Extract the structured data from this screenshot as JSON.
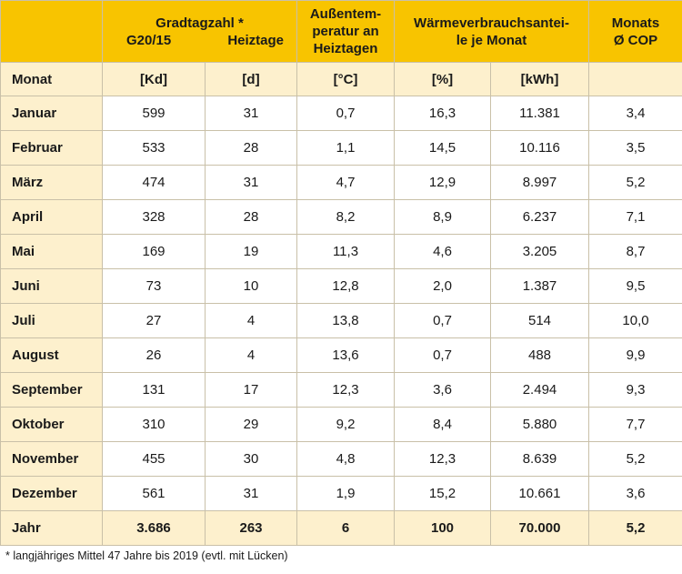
{
  "header": {
    "gradtagzahl_title": "Gradtagzahl *",
    "g20_15": "G20/15",
    "heiztage": "Heiztage",
    "aussentemp": "Außentem-\nperatur an\nHeiztagen",
    "waermeverbrauch": "Wärmeverbrauchsantei-\nle je Monat",
    "monats_cop": "Monats\nØ COP"
  },
  "units": {
    "monat": "Monat",
    "kd": "[Kd]",
    "d": "[d]",
    "celsius": "[°C]",
    "percent": "[%]",
    "kwh": "[kWh]",
    "cop": ""
  },
  "rows": [
    {
      "monat": "Januar",
      "kd": "599",
      "d": "31",
      "temp": "0,7",
      "pct": "16,3",
      "kwh": "11.381",
      "cop": "3,4"
    },
    {
      "monat": "Februar",
      "kd": "533",
      "d": "28",
      "temp": "1,1",
      "pct": "14,5",
      "kwh": "10.116",
      "cop": "3,5"
    },
    {
      "monat": "März",
      "kd": "474",
      "d": "31",
      "temp": "4,7",
      "pct": "12,9",
      "kwh": "8.997",
      "cop": "5,2"
    },
    {
      "monat": "April",
      "kd": "328",
      "d": "28",
      "temp": "8,2",
      "pct": "8,9",
      "kwh": "6.237",
      "cop": "7,1"
    },
    {
      "monat": "Mai",
      "kd": "169",
      "d": "19",
      "temp": "11,3",
      "pct": "4,6",
      "kwh": "3.205",
      "cop": "8,7"
    },
    {
      "monat": "Juni",
      "kd": "73",
      "d": "10",
      "temp": "12,8",
      "pct": "2,0",
      "kwh": "1.387",
      "cop": "9,5"
    },
    {
      "monat": "Juli",
      "kd": "27",
      "d": "4",
      "temp": "13,8",
      "pct": "0,7",
      "kwh": "514",
      "cop": "10,0"
    },
    {
      "monat": "August",
      "kd": "26",
      "d": "4",
      "temp": "13,6",
      "pct": "0,7",
      "kwh": "488",
      "cop": "9,9"
    },
    {
      "monat": "September",
      "kd": "131",
      "d": "17",
      "temp": "12,3",
      "pct": "3,6",
      "kwh": "2.494",
      "cop": "9,3"
    },
    {
      "monat": "Oktober",
      "kd": "310",
      "d": "29",
      "temp": "9,2",
      "pct": "8,4",
      "kwh": "5.880",
      "cop": "7,7"
    },
    {
      "monat": "November",
      "kd": "455",
      "d": "30",
      "temp": "4,8",
      "pct": "12,3",
      "kwh": "8.639",
      "cop": "5,2"
    },
    {
      "monat": "Dezember",
      "kd": "561",
      "d": "31",
      "temp": "1,9",
      "pct": "15,2",
      "kwh": "10.661",
      "cop": "3,6"
    }
  ],
  "total": {
    "monat": "Jahr",
    "kd": "3.686",
    "d": "263",
    "temp": "6",
    "pct": "100",
    "kwh": "70.000",
    "cop": "5,2"
  },
  "footnote": "* langjähriges Mittel 47 Jahre bis 2019 (evtl. mit Lücken)",
  "colors": {
    "header_bg": "#f8c400",
    "shade_bg": "#fdf0cd",
    "border": "#c9c0a8"
  }
}
